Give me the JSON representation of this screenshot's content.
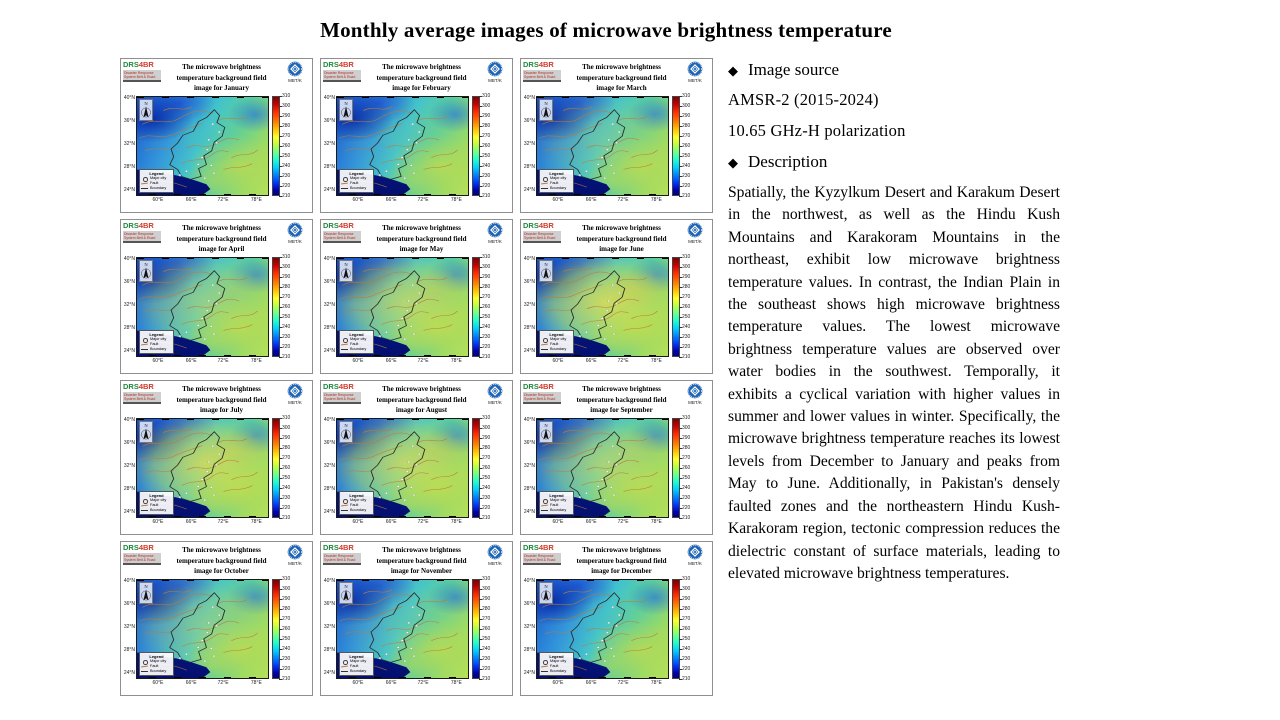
{
  "page_title": "Monthly average images of microwave brightness temperature",
  "panel": {
    "title_line1": "The microwave brightness",
    "title_line2": "temperature background field",
    "title_prefix": "image for",
    "logo_text_green": "DRS",
    "logo_text_red": "4BR",
    "logo_sub1": "Disaster Response",
    "logo_sub2": "System Belt & Road",
    "unit_label": "MBT/K",
    "north_label": "N",
    "legend": {
      "title": "Legend",
      "items": [
        "Major city",
        "Fault",
        "Boundary"
      ]
    },
    "y_ticks": [
      "40°N",
      "36°N",
      "32°N",
      "28°N",
      "24°N"
    ],
    "x_ticks": [
      "60°E",
      "66°E",
      "72°E",
      "78°E"
    ],
    "colorbar_ticks": [
      "310",
      "300",
      "290",
      "280",
      "270",
      "260",
      "250",
      "240",
      "230",
      "220",
      "210"
    ]
  },
  "months": [
    {
      "label": "January",
      "warmth": 0.05
    },
    {
      "label": "February",
      "warmth": 0.1
    },
    {
      "label": "March",
      "warmth": 0.3
    },
    {
      "label": "April",
      "warmth": 0.55
    },
    {
      "label": "May",
      "warmth": 0.78
    },
    {
      "label": "June",
      "warmth": 0.95
    },
    {
      "label": "July",
      "warmth": 0.9
    },
    {
      "label": "August",
      "warmth": 0.85
    },
    {
      "label": "September",
      "warmth": 0.7
    },
    {
      "label": "October",
      "warmth": 0.45
    },
    {
      "label": "November",
      "warmth": 0.18
    },
    {
      "label": "December",
      "warmth": 0.05
    }
  ],
  "sidebar": {
    "bullet1": "Image source",
    "source_line1": "AMSR-2 (2015-2024)",
    "source_line2": "10.65 GHz-H polarization",
    "bullet2": "Description",
    "description": "Spatially, the Kyzylkum Desert and Karakum Desert in the northwest, as well as the Hindu Kush Mountains and Karakoram Mountains in the northeast, exhibit low microwave brightness temperature values. In contrast, the Indian Plain in the southeast shows high microwave brightness temperature values. The lowest microwave brightness temperature values are observed over water bodies in the southwest. Temporally, it exhibits a cyclical variation with higher values in summer and lower values in winter. Specifically, the microwave brightness temperature reaches its lowest levels from December to January and peaks from May to June. Additionally, in Pakistan's densely faulted zones and the northeastern Hindu Kush-Karakoram region, tectonic compression reduces the dielectric constant of surface materials, leading to elevated microwave brightness temperatures."
  },
  "colors": {
    "logo_green": "#1e8a3e",
    "logo_red": "#d03a2b",
    "badge_blue": "#1f64b4",
    "sea_blue": "#031070",
    "fault_orange": "#bf7b35",
    "colorbar_top": "#7f0000",
    "colorbar_bottom": "#00007f"
  }
}
